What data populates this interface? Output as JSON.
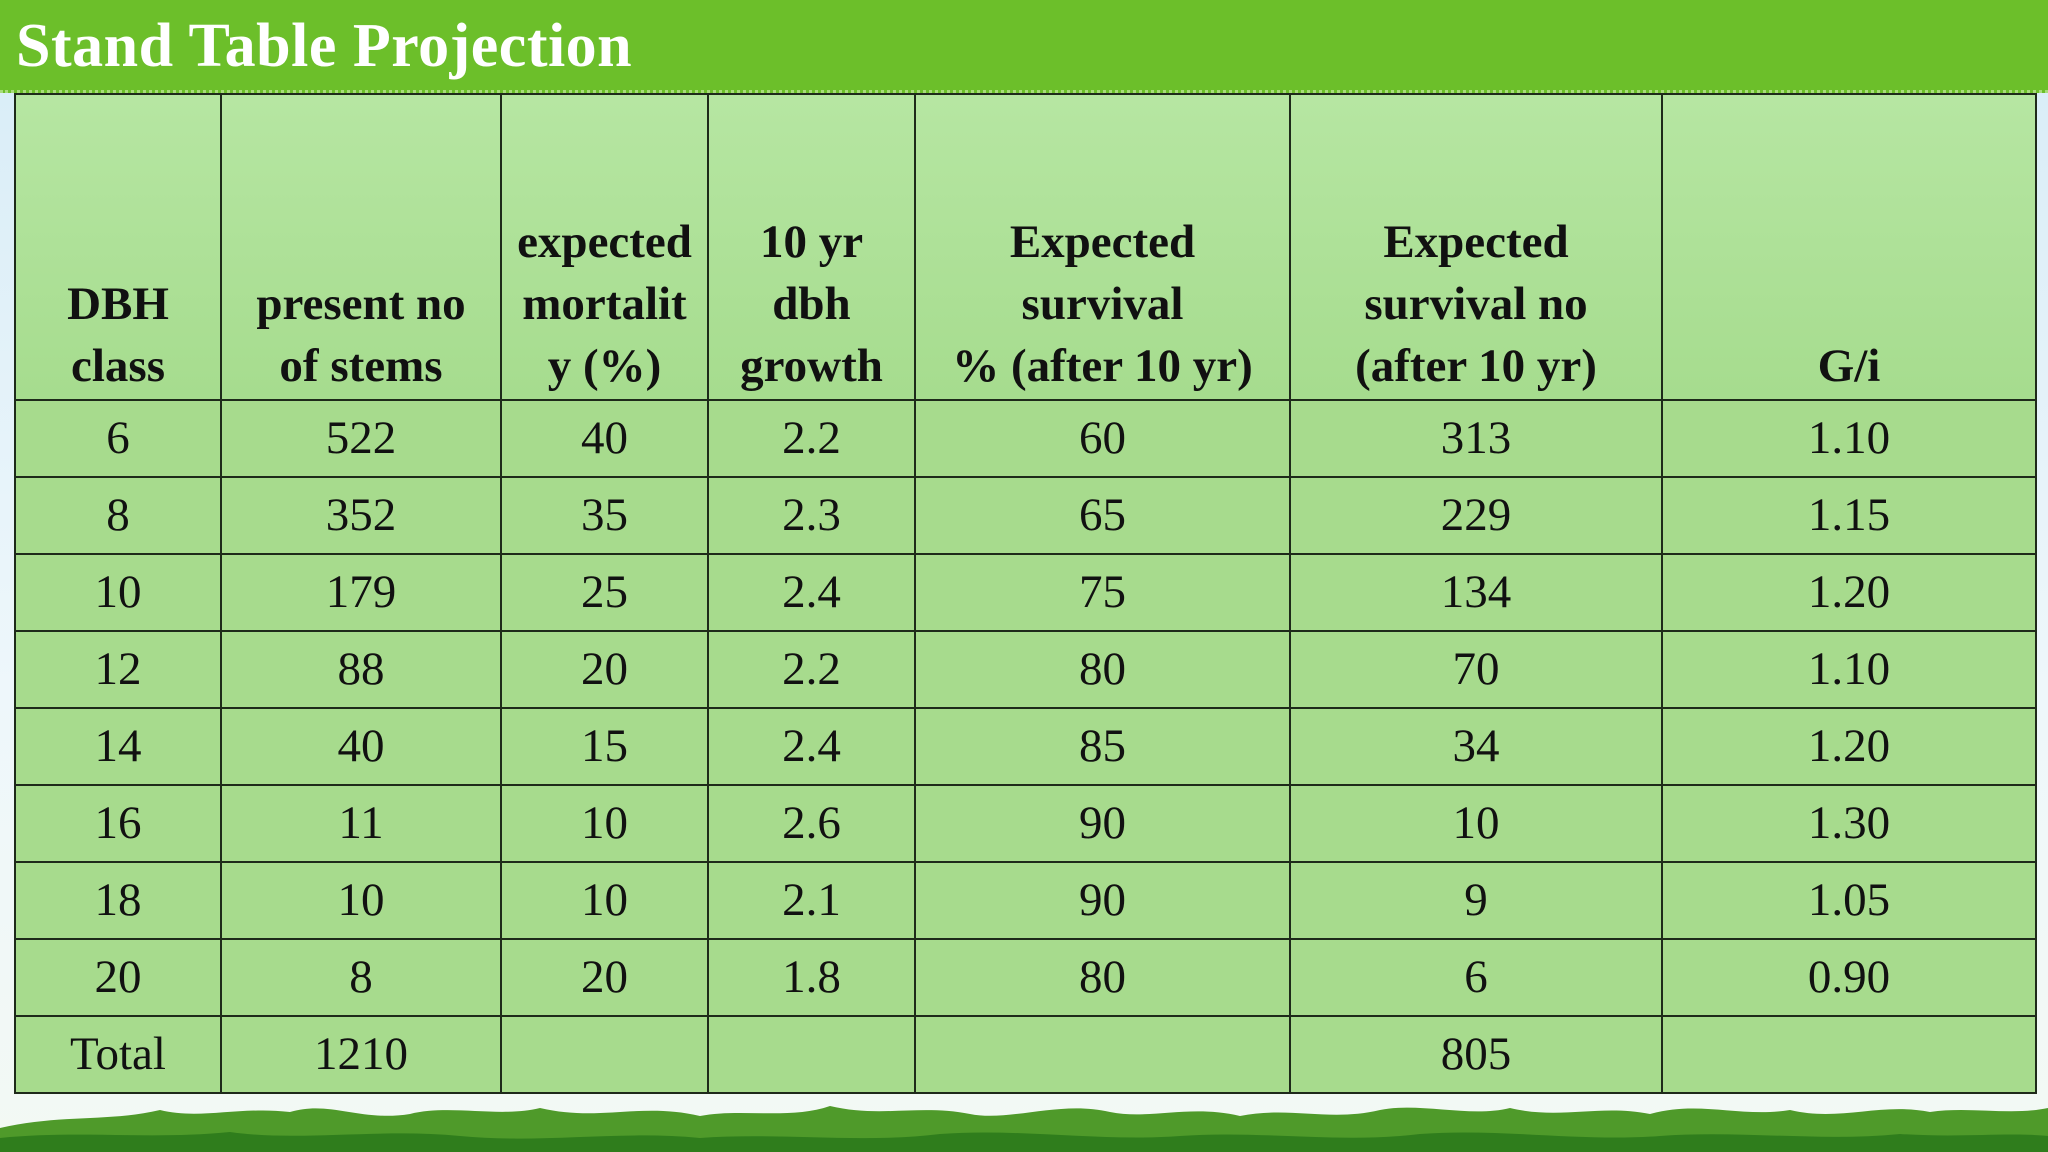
{
  "slide": {
    "title": "Stand Table Projection"
  },
  "table": {
    "headers": [
      [
        "DBH",
        "class"
      ],
      [
        "present no",
        "of stems"
      ],
      [
        "expected",
        "mortalit",
        "y (%)"
      ],
      [
        "10 yr",
        "dbh",
        "growth"
      ],
      [
        "Expected",
        "survival",
        "% (after 10 yr)"
      ],
      [
        "Expected",
        "survival no",
        "(after 10 yr)"
      ],
      [
        "G/i"
      ]
    ],
    "rows": [
      [
        "6",
        "522",
        "40",
        "2.2",
        "60",
        "313",
        "1.10"
      ],
      [
        "8",
        "352",
        "35",
        "2.3",
        "65",
        "229",
        "1.15"
      ],
      [
        "10",
        "179",
        "25",
        "2.4",
        "75",
        "134",
        "1.20"
      ],
      [
        "12",
        "88",
        "20",
        "2.2",
        "80",
        "70",
        "1.10"
      ],
      [
        "14",
        "40",
        "15",
        "2.4",
        "85",
        "34",
        "1.20"
      ],
      [
        "16",
        "11",
        "10",
        "2.6",
        "90",
        "10",
        "1.30"
      ],
      [
        "18",
        "10",
        "10",
        "2.1",
        "90",
        "9",
        "1.05"
      ],
      [
        "20",
        "8",
        "20",
        "1.8",
        "80",
        "6",
        "0.90"
      ],
      [
        "Total",
        "1210",
        "",
        "",
        "",
        "805",
        ""
      ]
    ]
  },
  "colors": {
    "title_bar": "#6cbf2a",
    "table_fill": "#a8dc8e",
    "border": "#1e2a1a",
    "grass": "#4f9a2a"
  }
}
